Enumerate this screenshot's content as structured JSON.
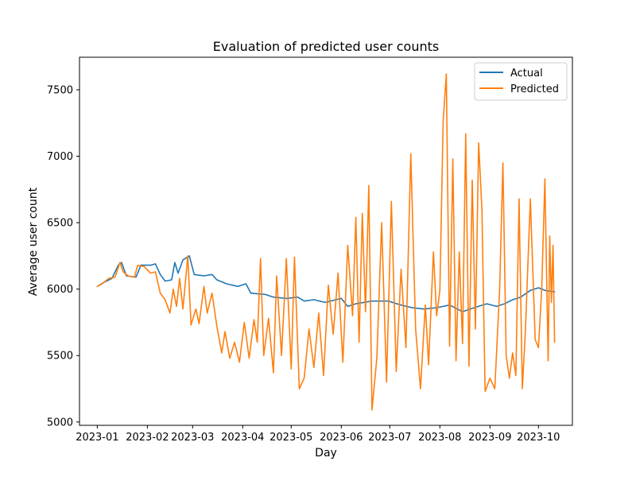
{
  "chart_data": {
    "type": "line",
    "title": "Evaluation of predicted user counts",
    "xlabel": "Day",
    "ylabel": "Average user count",
    "x_axis": {
      "start": "2023-01-01",
      "end": "2023-10-11",
      "range": [
        "2022-12-21",
        "2023-10-22"
      ],
      "ticks": [
        "2023-01-01",
        "2023-02-01",
        "2023-03-01",
        "2023-04-01",
        "2023-05-01",
        "2023-06-01",
        "2023-07-01",
        "2023-08-01",
        "2023-09-01",
        "2023-10-01"
      ],
      "tick_labels": [
        "2023-01",
        "2023-02",
        "2023-03",
        "2023-04",
        "2023-05",
        "2023-06",
        "2023-07",
        "2023-08",
        "2023-09",
        "2023-10"
      ]
    },
    "y_axis": {
      "range": [
        4975,
        7745
      ],
      "ticks": [
        5000,
        5500,
        6000,
        6500,
        7000,
        7500
      ],
      "tick_labels": [
        "5000",
        "5500",
        "6000",
        "6500",
        "7000",
        "7500"
      ]
    },
    "grid": false,
    "legend": {
      "position": "top-right"
    },
    "series": [
      {
        "name": "Actual",
        "color": "#1f77b4",
        "points": [
          [
            "2023-01-01",
            6020
          ],
          [
            "2023-01-05",
            6050
          ],
          [
            "2023-01-10",
            6080
          ],
          [
            "2023-01-14",
            6180
          ],
          [
            "2023-01-16",
            6200
          ],
          [
            "2023-01-19",
            6100
          ],
          [
            "2023-01-25",
            6090
          ],
          [
            "2023-01-28",
            6180
          ],
          [
            "2023-02-03",
            6180
          ],
          [
            "2023-02-06",
            6190
          ],
          [
            "2023-02-09",
            6110
          ],
          [
            "2023-02-12",
            6060
          ],
          [
            "2023-02-16",
            6070
          ],
          [
            "2023-02-18",
            6200
          ],
          [
            "2023-02-20",
            6120
          ],
          [
            "2023-02-23",
            6220
          ],
          [
            "2023-02-27",
            6250
          ],
          [
            "2023-03-02",
            6110
          ],
          [
            "2023-03-08",
            6100
          ],
          [
            "2023-03-13",
            6110
          ],
          [
            "2023-03-16",
            6070
          ],
          [
            "2023-03-22",
            6040
          ],
          [
            "2023-03-29",
            6020
          ],
          [
            "2023-04-03",
            6040
          ],
          [
            "2023-04-06",
            5970
          ],
          [
            "2023-04-15",
            5960
          ],
          [
            "2023-04-20",
            5940
          ],
          [
            "2023-04-28",
            5930
          ],
          [
            "2023-05-05",
            5940
          ],
          [
            "2023-05-09",
            5910
          ],
          [
            "2023-05-15",
            5920
          ],
          [
            "2023-05-22",
            5900
          ],
          [
            "2023-06-01",
            5930
          ],
          [
            "2023-06-05",
            5870
          ],
          [
            "2023-06-10",
            5890
          ],
          [
            "2023-06-20",
            5910
          ],
          [
            "2023-06-30",
            5910
          ],
          [
            "2023-07-08",
            5880
          ],
          [
            "2023-07-15",
            5860
          ],
          [
            "2023-07-22",
            5850
          ],
          [
            "2023-07-30",
            5860
          ],
          [
            "2023-08-07",
            5880
          ],
          [
            "2023-08-15",
            5830
          ],
          [
            "2023-08-22",
            5860
          ],
          [
            "2023-08-30",
            5890
          ],
          [
            "2023-09-05",
            5870
          ],
          [
            "2023-09-10",
            5890
          ],
          [
            "2023-09-15",
            5920
          ],
          [
            "2023-09-20",
            5940
          ],
          [
            "2023-09-26",
            5990
          ],
          [
            "2023-10-01",
            6010
          ],
          [
            "2023-10-05",
            5990
          ],
          [
            "2023-10-11",
            5980
          ]
        ]
      },
      {
        "name": "Predicted",
        "color": "#ff7f0e",
        "points": [
          [
            "2023-01-01",
            6020
          ],
          [
            "2023-01-04",
            6040
          ],
          [
            "2023-01-08",
            6080
          ],
          [
            "2023-01-12",
            6090
          ],
          [
            "2023-01-15",
            6200
          ],
          [
            "2023-01-17",
            6130
          ],
          [
            "2023-01-20",
            6100
          ],
          [
            "2023-01-24",
            6090
          ],
          [
            "2023-01-26",
            6180
          ],
          [
            "2023-01-30",
            6170
          ],
          [
            "2023-02-03",
            6120
          ],
          [
            "2023-02-06",
            6130
          ],
          [
            "2023-02-09",
            5970
          ],
          [
            "2023-02-12",
            5920
          ],
          [
            "2023-02-15",
            5820
          ],
          [
            "2023-02-17",
            6000
          ],
          [
            "2023-02-19",
            5870
          ],
          [
            "2023-02-21",
            6080
          ],
          [
            "2023-02-23",
            5850
          ],
          [
            "2023-02-26",
            6250
          ],
          [
            "2023-02-28",
            5730
          ],
          [
            "2023-03-03",
            5850
          ],
          [
            "2023-03-05",
            5740
          ],
          [
            "2023-03-08",
            6020
          ],
          [
            "2023-03-10",
            5820
          ],
          [
            "2023-03-13",
            5970
          ],
          [
            "2023-03-16",
            5720
          ],
          [
            "2023-03-19",
            5520
          ],
          [
            "2023-03-21",
            5680
          ],
          [
            "2023-03-24",
            5480
          ],
          [
            "2023-03-27",
            5600
          ],
          [
            "2023-03-30",
            5450
          ],
          [
            "2023-04-02",
            5750
          ],
          [
            "2023-04-05",
            5480
          ],
          [
            "2023-04-08",
            5770
          ],
          [
            "2023-04-10",
            5600
          ],
          [
            "2023-04-12",
            6230
          ],
          [
            "2023-04-14",
            5500
          ],
          [
            "2023-04-17",
            5780
          ],
          [
            "2023-04-20",
            5370
          ],
          [
            "2023-04-22",
            6100
          ],
          [
            "2023-04-25",
            5500
          ],
          [
            "2023-04-28",
            6230
          ],
          [
            "2023-05-01",
            5400
          ],
          [
            "2023-05-03",
            6240
          ],
          [
            "2023-05-06",
            5250
          ],
          [
            "2023-05-09",
            5330
          ],
          [
            "2023-05-12",
            5700
          ],
          [
            "2023-05-15",
            5410
          ],
          [
            "2023-05-18",
            5820
          ],
          [
            "2023-05-21",
            5350
          ],
          [
            "2023-05-24",
            6030
          ],
          [
            "2023-05-27",
            5660
          ],
          [
            "2023-05-30",
            6120
          ],
          [
            "2023-06-02",
            5450
          ],
          [
            "2023-06-05",
            6330
          ],
          [
            "2023-06-08",
            5800
          ],
          [
            "2023-06-10",
            6540
          ],
          [
            "2023-06-12",
            5600
          ],
          [
            "2023-06-14",
            6570
          ],
          [
            "2023-06-16",
            5830
          ],
          [
            "2023-06-18",
            6780
          ],
          [
            "2023-06-20",
            5090
          ],
          [
            "2023-06-23",
            5480
          ],
          [
            "2023-06-26",
            6500
          ],
          [
            "2023-06-29",
            5300
          ],
          [
            "2023-07-02",
            6660
          ],
          [
            "2023-07-05",
            5380
          ],
          [
            "2023-07-08",
            6150
          ],
          [
            "2023-07-11",
            5560
          ],
          [
            "2023-07-14",
            7020
          ],
          [
            "2023-07-17",
            5700
          ],
          [
            "2023-07-20",
            5250
          ],
          [
            "2023-07-23",
            5880
          ],
          [
            "2023-07-25",
            5430
          ],
          [
            "2023-07-28",
            6280
          ],
          [
            "2023-07-30",
            5800
          ],
          [
            "2023-08-01",
            5990
          ],
          [
            "2023-08-03",
            7260
          ],
          [
            "2023-08-05",
            7620
          ],
          [
            "2023-08-07",
            5570
          ],
          [
            "2023-08-09",
            6980
          ],
          [
            "2023-08-11",
            5460
          ],
          [
            "2023-08-13",
            6280
          ],
          [
            "2023-08-15",
            5590
          ],
          [
            "2023-08-17",
            7170
          ],
          [
            "2023-08-19",
            5420
          ],
          [
            "2023-08-21",
            6820
          ],
          [
            "2023-08-23",
            5700
          ],
          [
            "2023-08-25",
            7100
          ],
          [
            "2023-08-27",
            6600
          ],
          [
            "2023-08-29",
            5230
          ],
          [
            "2023-09-01",
            5330
          ],
          [
            "2023-09-04",
            5250
          ],
          [
            "2023-09-07",
            6000
          ],
          [
            "2023-09-09",
            6950
          ],
          [
            "2023-09-11",
            5500
          ],
          [
            "2023-09-13",
            5330
          ],
          [
            "2023-09-15",
            5520
          ],
          [
            "2023-09-17",
            5350
          ],
          [
            "2023-09-19",
            6680
          ],
          [
            "2023-09-21",
            5250
          ],
          [
            "2023-09-23",
            5700
          ],
          [
            "2023-09-26",
            6680
          ],
          [
            "2023-09-29",
            5620
          ],
          [
            "2023-10-01",
            5560
          ],
          [
            "2023-10-03",
            6000
          ],
          [
            "2023-10-05",
            6830
          ],
          [
            "2023-10-07",
            5460
          ],
          [
            "2023-10-08",
            6400
          ],
          [
            "2023-10-09",
            5900
          ],
          [
            "2023-10-10",
            6330
          ],
          [
            "2023-10-11",
            5600
          ]
        ]
      }
    ]
  }
}
